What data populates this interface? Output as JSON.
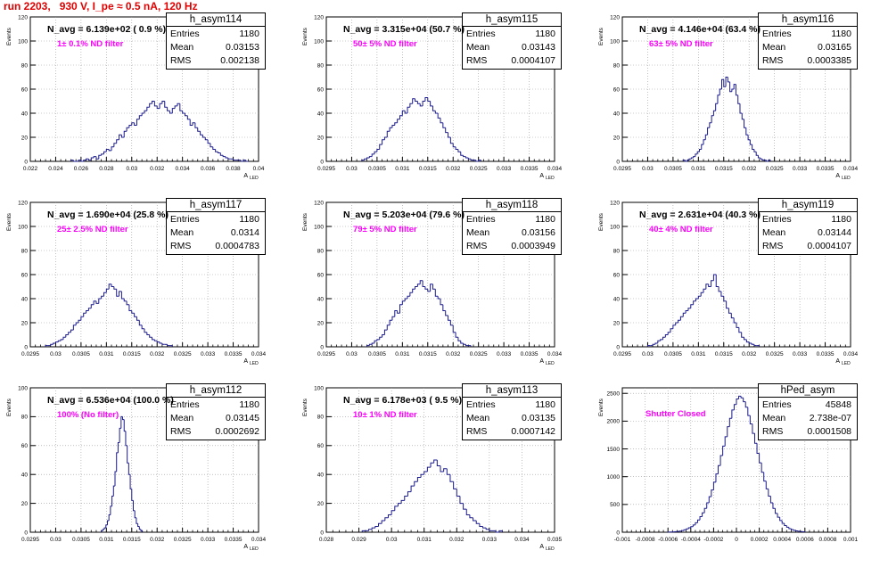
{
  "header": {
    "title": "run 2203,   930 V, I_pe ≈ 0.5 nA, 120 Hz"
  },
  "colors": {
    "histogram": "#1a1a8c",
    "filter_text": "#ff00ff",
    "title_text": "#e00000",
    "grid": "#9a9a9a"
  },
  "chart_data": [
    {
      "type": "bar",
      "name": "h_asym114",
      "navg": "N_avg = 6.139e+02 ( 0.9 %)",
      "filter": "1± 0.1% ND filter",
      "stats": {
        "entries": "1180",
        "mean": "0.03153",
        "rms": "0.002138"
      },
      "xlabel": "A",
      "xlabel_sub": "LED",
      "ylabel": "Events",
      "xlim": [
        0.022,
        0.04
      ],
      "ylim": [
        0,
        120
      ],
      "xticks": [
        0.022,
        0.024,
        0.026,
        0.028,
        0.03,
        0.032,
        0.034,
        0.036,
        0.038,
        0.04
      ],
      "xtick_labels": [
        "0.022",
        "0.024",
        "0.026",
        "0.028",
        "0.03",
        "0.032",
        "0.034",
        "0.036",
        "0.038",
        "0.04"
      ],
      "yticks": [
        0,
        20,
        40,
        60,
        80,
        100,
        120
      ],
      "ytick_labels": [
        "0",
        "20",
        "40",
        "60",
        "80",
        "100",
        "120"
      ],
      "bins": {
        "start": 0.0252,
        "width": 0.0002,
        "values": [
          1,
          0,
          0,
          1,
          0,
          1,
          2,
          1,
          3,
          4,
          2,
          5,
          6,
          8,
          10,
          9,
          12,
          15,
          18,
          22,
          20,
          25,
          28,
          30,
          32,
          30,
          35,
          38,
          40,
          42,
          45,
          48,
          50,
          46,
          44,
          48,
          50,
          45,
          42,
          40,
          44,
          46,
          48,
          42,
          40,
          38,
          35,
          30,
          32,
          28,
          25,
          22,
          20,
          18,
          15,
          12,
          10,
          8,
          7,
          5,
          4,
          3,
          2,
          2,
          1,
          1,
          1,
          0,
          1,
          0
        ]
      }
    },
    {
      "type": "bar",
      "name": "h_asym115",
      "navg": "N_avg = 3.315e+04 (50.7 %)",
      "filter": "50± 5% ND filter",
      "stats": {
        "entries": "1180",
        "mean": "0.03143",
        "rms": "0.0004107"
      },
      "xlabel": "A",
      "xlabel_sub": "LED",
      "ylabel": "Events",
      "xlim": [
        0.0295,
        0.034
      ],
      "ylim": [
        0,
        120
      ],
      "xticks": [
        0.0295,
        0.03,
        0.0305,
        0.031,
        0.0315,
        0.032,
        0.0325,
        0.033,
        0.0335,
        0.034
      ],
      "xtick_labels": [
        "0.0295",
        "0.03",
        "0.0305",
        "0.031",
        "0.0315",
        "0.032",
        "0.0325",
        "0.033",
        "0.0335",
        "0.034"
      ],
      "yticks": [
        0,
        20,
        40,
        60,
        80,
        100,
        120
      ],
      "ytick_labels": [
        "0",
        "20",
        "40",
        "60",
        "80",
        "100",
        "120"
      ],
      "bins": {
        "start": 0.0302,
        "width": 5e-05,
        "values": [
          1,
          2,
          3,
          4,
          6,
          8,
          10,
          14,
          18,
          20,
          25,
          28,
          30,
          32,
          35,
          38,
          42,
          40,
          45,
          48,
          52,
          50,
          48,
          46,
          50,
          53,
          50,
          46,
          42,
          40,
          36,
          32,
          28,
          24,
          20,
          15,
          12,
          10,
          8,
          5,
          4,
          3,
          2,
          1,
          1,
          0,
          1
        ]
      }
    },
    {
      "type": "bar",
      "name": "h_asym116",
      "navg": "N_avg = 4.146e+04 (63.4 %)",
      "filter": "63± 5% ND filter",
      "stats": {
        "entries": "1180",
        "mean": "0.03165",
        "rms": "0.0003385"
      },
      "xlabel": "A",
      "xlabel_sub": "LED",
      "ylabel": "Events",
      "xlim": [
        0.0295,
        0.034
      ],
      "ylim": [
        0,
        120
      ],
      "xticks": [
        0.0295,
        0.03,
        0.0305,
        0.031,
        0.0315,
        0.032,
        0.0325,
        0.033,
        0.0335,
        0.034
      ],
      "xtick_labels": [
        "0.0295",
        "0.03",
        "0.0305",
        "0.031",
        "0.0315",
        "0.032",
        "0.0325",
        "0.033",
        "0.0335",
        "0.034"
      ],
      "yticks": [
        0,
        20,
        40,
        60,
        80,
        100,
        120
      ],
      "ytick_labels": [
        "0",
        "20",
        "40",
        "60",
        "80",
        "100",
        "120"
      ],
      "bins": {
        "start": 0.0307,
        "width": 4e-05,
        "values": [
          1,
          0,
          1,
          2,
          3,
          4,
          6,
          8,
          10,
          14,
          18,
          22,
          28,
          32,
          38,
          42,
          48,
          55,
          60,
          68,
          62,
          70,
          66,
          58,
          60,
          64,
          55,
          48,
          40,
          35,
          28,
          22,
          18,
          14,
          10,
          8,
          5,
          3,
          2,
          1,
          1,
          0,
          1
        ]
      }
    },
    {
      "type": "bar",
      "name": "h_asym117",
      "navg": "N_avg = 1.690e+04 (25.8 %)",
      "filter": "25± 2.5% ND filter",
      "stats": {
        "entries": "1180",
        "mean": "0.0314",
        "rms": "0.0004783"
      },
      "xlabel": "A",
      "xlabel_sub": "LED",
      "ylabel": "Events",
      "xlim": [
        0.0295,
        0.034
      ],
      "ylim": [
        0,
        120
      ],
      "xticks": [
        0.0295,
        0.03,
        0.0305,
        0.031,
        0.0315,
        0.032,
        0.0325,
        0.033,
        0.0335,
        0.034
      ],
      "xtick_labels": [
        "0.0295",
        "0.03",
        "0.0305",
        "0.031",
        "0.0315",
        "0.032",
        "0.0325",
        "0.033",
        "0.0335",
        "0.034"
      ],
      "yticks": [
        0,
        20,
        40,
        60,
        80,
        100,
        120
      ],
      "ytick_labels": [
        "0",
        "20",
        "40",
        "60",
        "80",
        "100",
        "120"
      ],
      "bins": {
        "start": 0.0298,
        "width": 5e-05,
        "values": [
          1,
          1,
          2,
          3,
          4,
          5,
          6,
          8,
          10,
          12,
          14,
          18,
          20,
          22,
          25,
          28,
          30,
          32,
          35,
          38,
          36,
          40,
          42,
          45,
          48,
          52,
          50,
          48,
          42,
          46,
          40,
          38,
          35,
          30,
          28,
          25,
          22,
          18,
          15,
          12,
          10,
          8,
          6,
          5,
          4,
          3,
          2,
          2,
          1,
          1
        ]
      }
    },
    {
      "type": "bar",
      "name": "h_asym118",
      "navg": "N_avg = 5.203e+04 (79.6 %)",
      "filter": "79± 5% ND filter",
      "stats": {
        "entries": "1180",
        "mean": "0.03156",
        "rms": "0.0003949"
      },
      "xlabel": "A",
      "xlabel_sub": "LED",
      "ylabel": "Events",
      "xlim": [
        0.0295,
        0.034
      ],
      "ylim": [
        0,
        120
      ],
      "xticks": [
        0.0295,
        0.03,
        0.0305,
        0.031,
        0.0315,
        0.032,
        0.0325,
        0.033,
        0.0335,
        0.034
      ],
      "xtick_labels": [
        "0.0295",
        "0.03",
        "0.0305",
        "0.031",
        "0.0315",
        "0.032",
        "0.0325",
        "0.033",
        "0.0335",
        "0.034"
      ],
      "yticks": [
        0,
        20,
        40,
        60,
        80,
        100,
        120
      ],
      "ytick_labels": [
        "0",
        "20",
        "40",
        "60",
        "80",
        "100",
        "120"
      ],
      "bins": {
        "start": 0.0303,
        "width": 5e-05,
        "values": [
          1,
          2,
          3,
          5,
          6,
          8,
          10,
          14,
          18,
          22,
          25,
          30,
          28,
          35,
          38,
          40,
          42,
          45,
          48,
          50,
          52,
          55,
          50,
          48,
          46,
          52,
          48,
          42,
          40,
          35,
          30,
          26,
          22,
          18,
          12,
          8,
          5,
          3,
          2,
          1,
          1
        ]
      }
    },
    {
      "type": "bar",
      "name": "h_asym119",
      "navg": "N_avg = 2.631e+04 (40.3 %)",
      "filter": "40± 4% ND filter",
      "stats": {
        "entries": "1180",
        "mean": "0.03144",
        "rms": "0.0004107"
      },
      "xlabel": "A",
      "xlabel_sub": "LED",
      "ylabel": "Events",
      "xlim": [
        0.0295,
        0.034
      ],
      "ylim": [
        0,
        120
      ],
      "xticks": [
        0.0295,
        0.03,
        0.0305,
        0.031,
        0.0315,
        0.032,
        0.0325,
        0.033,
        0.0335,
        0.034
      ],
      "xtick_labels": [
        "0.0295",
        "0.03",
        "0.0305",
        "0.031",
        "0.0315",
        "0.032",
        "0.0325",
        "0.033",
        "0.0335",
        "0.034"
      ],
      "yticks": [
        0,
        20,
        40,
        60,
        80,
        100,
        120
      ],
      "ytick_labels": [
        "0",
        "20",
        "40",
        "60",
        "80",
        "100",
        "120"
      ],
      "bins": {
        "start": 0.03,
        "width": 5e-05,
        "values": [
          1,
          1,
          2,
          3,
          5,
          6,
          8,
          10,
          12,
          15,
          18,
          20,
          22,
          25,
          28,
          30,
          32,
          35,
          38,
          40,
          42,
          45,
          48,
          52,
          50,
          55,
          60,
          50,
          46,
          42,
          38,
          32,
          28,
          24,
          20,
          16,
          12,
          8,
          6,
          4,
          3,
          2,
          1,
          1
        ]
      }
    },
    {
      "type": "bar",
      "name": "h_asym112",
      "navg": "N_avg = 6.536e+04 (100.0 %)",
      "filter": "100% (No filter)",
      "stats": {
        "entries": "1180",
        "mean": "0.03145",
        "rms": "0.0002692"
      },
      "xlabel": "A",
      "xlabel_sub": "LED",
      "ylabel": "Events",
      "xlim": [
        0.0295,
        0.034
      ],
      "ylim": [
        0,
        100
      ],
      "xticks": [
        0.0295,
        0.03,
        0.0305,
        0.031,
        0.0315,
        0.032,
        0.0325,
        0.033,
        0.0335,
        0.034
      ],
      "xtick_labels": [
        "0.0295",
        "0.03",
        "0.0305",
        "0.031",
        "0.0315",
        "0.032",
        "0.0325",
        "0.033",
        "0.0335",
        "0.034"
      ],
      "yticks": [
        0,
        20,
        40,
        60,
        80,
        100
      ],
      "ytick_labels": [
        "0",
        "20",
        "40",
        "60",
        "80",
        "100"
      ],
      "bins": {
        "start": 0.0309,
        "width": 3e-05,
        "values": [
          1,
          2,
          3,
          5,
          8,
          12,
          18,
          25,
          32,
          42,
          55,
          62,
          72,
          80,
          78,
          70,
          60,
          48,
          40,
          30,
          22,
          15,
          10,
          6,
          4,
          2,
          1
        ]
      }
    },
    {
      "type": "bar",
      "name": "h_asym113",
      "navg": "N_avg = 6.178e+03 ( 9.5 %)",
      "filter": "10± 1% ND filter",
      "stats": {
        "entries": "1180",
        "mean": "0.03135",
        "rms": "0.0007142"
      },
      "xlabel": "A",
      "xlabel_sub": "LED",
      "ylabel": "Events",
      "xlim": [
        0.028,
        0.035
      ],
      "ylim": [
        0,
        100
      ],
      "xticks": [
        0.028,
        0.029,
        0.03,
        0.031,
        0.032,
        0.033,
        0.034,
        0.035
      ],
      "xtick_labels": [
        "0.028",
        "0.029",
        "0.03",
        "0.031",
        "0.032",
        "0.033",
        "0.034",
        "0.035"
      ],
      "yticks": [
        0,
        20,
        40,
        60,
        80,
        100
      ],
      "ytick_labels": [
        "0",
        "20",
        "40",
        "60",
        "80",
        "100"
      ],
      "bins": {
        "start": 0.0291,
        "width": 0.0001,
        "values": [
          1,
          1,
          2,
          3,
          4,
          6,
          8,
          10,
          12,
          15,
          18,
          20,
          22,
          25,
          28,
          32,
          35,
          38,
          40,
          42,
          45,
          48,
          50,
          46,
          42,
          44,
          40,
          35,
          30,
          25,
          20,
          16,
          12,
          10,
          8,
          6,
          4,
          3,
          2,
          1,
          1,
          0,
          1
        ]
      }
    },
    {
      "type": "bar",
      "name": "hPed_asym",
      "navg": "",
      "filter": "Shutter Closed",
      "stats": {
        "entries": "45848",
        "mean": "2.738e-07",
        "rms": "0.0001508"
      },
      "xlabel": "",
      "xlabel_sub": "",
      "ylabel": "Events",
      "xlim": [
        -0.001,
        0.001
      ],
      "ylim": [
        0,
        2600
      ],
      "xticks": [
        -0.001,
        -0.0008,
        -0.0006,
        -0.0004,
        -0.0002,
        0,
        0.0002,
        0.0004,
        0.0006,
        0.0008,
        0.001
      ],
      "xtick_labels": [
        "-0.001",
        "-0.0008",
        "-0.0006",
        "-0.0004",
        "-0.0002",
        "0",
        "0.0002",
        "0.0004",
        "0.0006",
        "0.0008",
        "0.001"
      ],
      "yticks": [
        0,
        500,
        1000,
        1500,
        2000,
        2500
      ],
      "ytick_labels": [
        "0",
        "500",
        "1000",
        "1500",
        "2000",
        "2500"
      ],
      "bins": {
        "start": -0.0006,
        "width": 2e-05,
        "values": [
          2,
          4,
          6,
          10,
          15,
          20,
          30,
          45,
          60,
          80,
          100,
          130,
          170,
          220,
          280,
          350,
          430,
          530,
          640,
          760,
          900,
          1050,
          1200,
          1380,
          1550,
          1720,
          1900,
          2050,
          2200,
          2300,
          2400,
          2450,
          2420,
          2350,
          2250,
          2100,
          1950,
          1780,
          1600,
          1420,
          1250,
          1080,
          920,
          780,
          650,
          530,
          430,
          340,
          270,
          210,
          160,
          120,
          90,
          65,
          48,
          35,
          25,
          18,
          12,
          8
        ]
      }
    }
  ]
}
